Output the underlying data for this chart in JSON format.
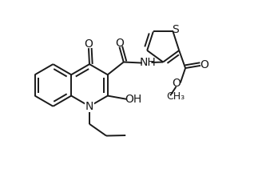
{
  "bg_color": "#ffffff",
  "line_color": "#1a1a1a",
  "line_width": 1.4,
  "figsize": [
    3.38,
    2.36
  ],
  "dpi": 100,
  "xlim": [
    -2.8,
    3.6
  ],
  "ylim": [
    -1.6,
    1.6
  ]
}
